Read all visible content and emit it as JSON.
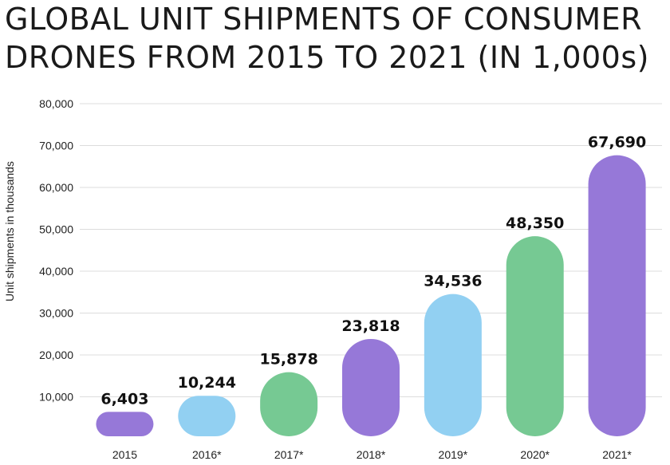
{
  "chart_data": {
    "type": "bar",
    "title_lines": [
      "GLOBAL UNIT SHIPMENTS OF CONSUMER",
      "DRONES FROM 2015 TO 2021 (IN 1,000s)"
    ],
    "ylabel": "Unit shipments in thousands",
    "xlabel": "",
    "categories": [
      "2015",
      "2016*",
      "2017*",
      "2018*",
      "2019*",
      "2020*",
      "2021*"
    ],
    "values": [
      6403,
      10244,
      15878,
      23818,
      34536,
      48350,
      67690
    ],
    "value_labels": [
      "6,403",
      "10,244",
      "15,878",
      "23,818",
      "34,536",
      "48,350",
      "67,690"
    ],
    "bar_colors": [
      "#9678d8",
      "#92d0f2",
      "#76c993",
      "#9678d8",
      "#92d0f2",
      "#76c993",
      "#9678d8"
    ],
    "yticks": [
      10000,
      20000,
      30000,
      40000,
      50000,
      60000,
      70000,
      80000
    ],
    "ytick_labels": [
      "10,000",
      "20,000",
      "30,000",
      "40,000",
      "50,000",
      "60,000",
      "70,000",
      "80,000"
    ],
    "ylim": [
      0,
      80000
    ],
    "grid": true
  }
}
